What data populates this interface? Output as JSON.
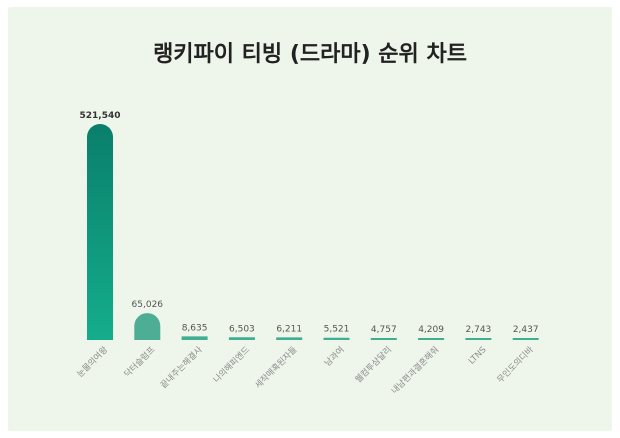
{
  "chart_data": {
    "type": "bar",
    "title": "랭키파이 티빙 (드라마) 순위 차트",
    "categories": [
      "눈물의여왕",
      "닥터슬럼프",
      "끝내주는해결사",
      "나의해피엔드",
      "세작매혹된자들",
      "남과여",
      "웰컴투삼달리",
      "내남편과결혼해줘",
      "LTNS",
      "무인도의디바"
    ],
    "values": [
      521540,
      65026,
      8635,
      6503,
      6211,
      5521,
      4757,
      4209,
      2743,
      2437
    ],
    "value_labels": [
      "521,540",
      "65,026",
      "8,635",
      "6,503",
      "6,211",
      "5,521",
      "4,757",
      "4,209",
      "2,743",
      "2,437"
    ],
    "xlabel": "",
    "ylabel": "",
    "ylim": [
      0,
      521540
    ],
    "grid": false,
    "colors": {
      "top_bar_start": "#14ad8c",
      "top_bar_end": "#0a7f6b",
      "second_bar": "#4eae95",
      "other_bars": "#3fae92"
    }
  }
}
